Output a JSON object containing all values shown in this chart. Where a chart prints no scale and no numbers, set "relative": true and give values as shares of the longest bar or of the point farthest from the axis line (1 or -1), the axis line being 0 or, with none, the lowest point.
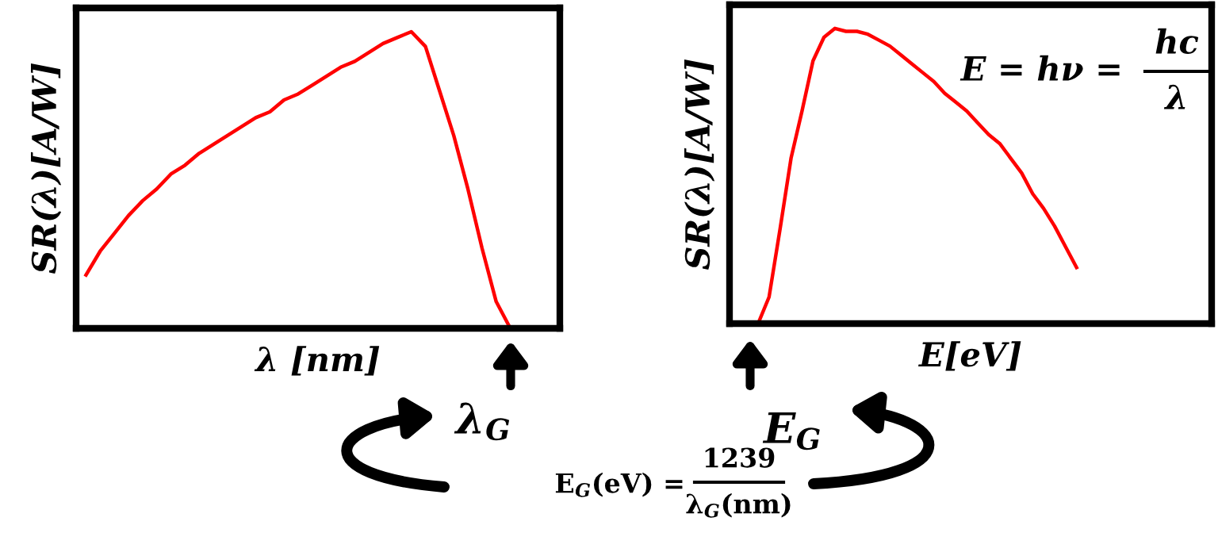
{
  "chart_data": [
    {
      "type": "line",
      "relative": true,
      "xlabel": "λ [nm]",
      "ylabel": "SR(λ)[A/W]",
      "tick_labels": false,
      "marker": "none",
      "line_style": "solid",
      "categories": [
        null,
        null,
        null,
        null,
        null,
        null,
        null,
        null,
        null,
        null,
        null,
        null,
        null,
        null,
        null,
        null,
        null,
        null,
        null,
        null,
        null,
        null,
        null,
        null,
        null,
        null,
        null,
        null,
        null,
        null,
        null
      ],
      "series": [
        {
          "color": "#ff0000",
          "values": [
            0.18,
            0.26,
            0.32,
            0.38,
            0.43,
            0.47,
            0.52,
            0.55,
            0.59,
            0.62,
            0.65,
            0.68,
            0.71,
            0.73,
            0.77,
            0.79,
            0.82,
            0.85,
            0.88,
            0.9,
            0.93,
            0.96,
            0.98,
            1,
            0.95,
            0.8,
            0.65,
            0.47,
            0.27,
            0.09,
            0
          ]
        }
      ],
      "annotations": [
        "λ$_{G}$"
      ]
    },
    {
      "type": "line",
      "relative": true,
      "xlabel": "E[eV]",
      "ylabel": "SR(λ)[A/W]",
      "tick_labels": false,
      "marker": "none",
      "line_style": "solid",
      "categories": [
        null,
        null,
        null,
        null,
        null,
        null,
        null,
        null,
        null,
        null,
        null,
        null,
        null,
        null,
        null,
        null,
        null,
        null,
        null,
        null,
        null,
        null,
        null,
        null,
        null,
        null,
        null,
        null,
        null,
        null
      ],
      "series": [
        {
          "color": "#ff0000",
          "values": [
            0,
            0.09,
            0.32,
            0.56,
            0.72,
            0.89,
            0.97,
            1,
            0.99,
            0.99,
            0.98,
            0.96,
            0.94,
            0.91,
            0.88,
            0.85,
            0.82,
            0.78,
            0.75,
            0.72,
            0.68,
            0.64,
            0.61,
            0.56,
            0.51,
            0.44,
            0.39,
            0.33,
            0.26,
            0.19
          ]
        }
      ],
      "annotations": [
        "E = hν =",
        "hc",
        "λ",
        "E$_{G}$",
        "E$_{G}$(eV) =",
        "1239",
        "λ$_{G}$(nm)"
      ]
    }
  ]
}
